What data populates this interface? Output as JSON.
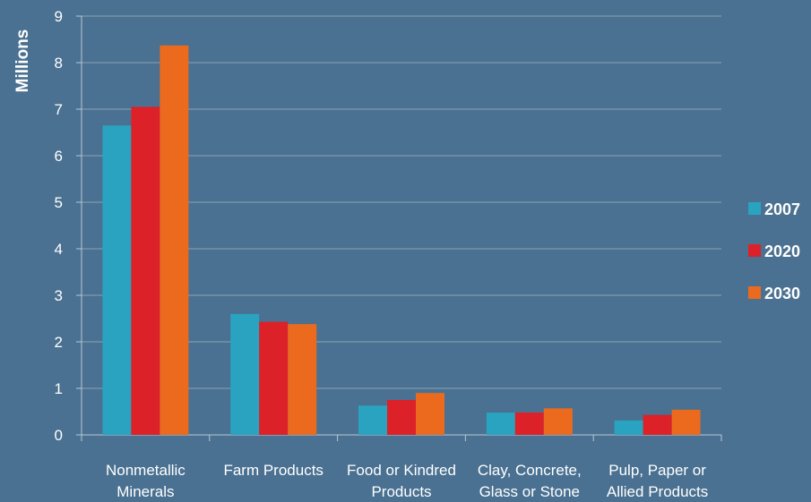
{
  "chart_data": {
    "type": "bar",
    "title": "",
    "xlabel": "",
    "ylabel": "Millions",
    "ylim": [
      0,
      9
    ],
    "yticks": [
      0,
      1,
      2,
      3,
      4,
      5,
      6,
      7,
      8,
      9
    ],
    "grid": true,
    "legend_position": "right",
    "categories": [
      [
        "Nonmetallic",
        "Minerals"
      ],
      [
        "Farm Products"
      ],
      [
        "Food or Kindred",
        "Products"
      ],
      [
        "Clay, Concrete,",
        "Glass or Stone"
      ],
      [
        "Pulp, Paper or",
        "Allied Products"
      ]
    ],
    "series": [
      {
        "name": "2007",
        "color": "#2aa3c0",
        "values": [
          6.65,
          2.6,
          0.63,
          0.48,
          0.31
        ]
      },
      {
        "name": "2020",
        "color": "#dc2128",
        "values": [
          7.05,
          2.43,
          0.75,
          0.48,
          0.43
        ]
      },
      {
        "name": "2030",
        "color": "#ec6a1e",
        "values": [
          8.37,
          2.38,
          0.9,
          0.57,
          0.54
        ]
      }
    ],
    "colors": {
      "background": "#4a7191",
      "grid": "#8aa3b8",
      "axis": "#b8c9d6",
      "text": "#ffffff"
    }
  }
}
